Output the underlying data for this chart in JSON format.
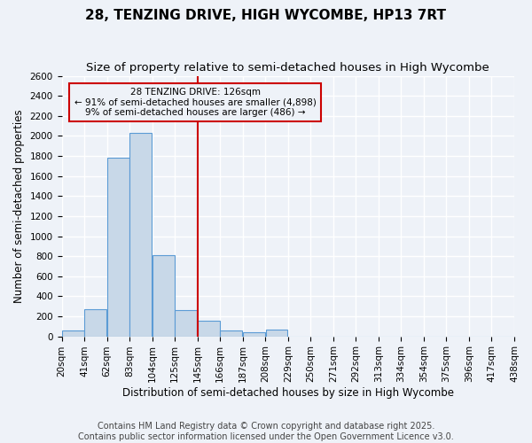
{
  "title": "28, TENZING DRIVE, HIGH WYCOMBE, HP13 7RT",
  "subtitle": "Size of property relative to semi-detached houses in High Wycombe",
  "xlabel": "Distribution of semi-detached houses by size in High Wycombe",
  "ylabel": "Number of semi-detached properties",
  "footer_line1": "Contains HM Land Registry data © Crown copyright and database right 2025.",
  "footer_line2": "Contains public sector information licensed under the Open Government Licence v3.0.",
  "annotation_title": "28 TENZING DRIVE: 126sqm",
  "annotation_line1": "← 91% of semi-detached houses are smaller (4,898)",
  "annotation_line2": "9% of semi-detached houses are larger (486) →",
  "bar_edges": [
    20,
    41,
    62,
    83,
    104,
    125,
    146,
    167,
    188,
    209,
    230,
    251,
    272,
    293,
    314,
    335,
    356,
    377,
    398,
    419,
    440
  ],
  "bar_labels": [
    "20sqm",
    "41sqm",
    "62sqm",
    "83sqm",
    "104sqm",
    "125sqm",
    "145sqm",
    "166sqm",
    "187sqm",
    "208sqm",
    "229sqm",
    "250sqm",
    "271sqm",
    "292sqm",
    "313sqm",
    "334sqm",
    "354sqm",
    "375sqm",
    "396sqm",
    "417sqm",
    "438sqm"
  ],
  "bar_heights": [
    60,
    270,
    1780,
    2030,
    810,
    260,
    155,
    60,
    40,
    70,
    0,
    0,
    0,
    0,
    0,
    0,
    0,
    0,
    0,
    0
  ],
  "bar_color": "#c8d8e8",
  "bar_edge_color": "#5b9bd5",
  "vline_color": "#cc0000",
  "annotation_box_color": "#cc0000",
  "annotation_text_color": "#000000",
  "ylim": [
    0,
    2600
  ],
  "yticks": [
    0,
    200,
    400,
    600,
    800,
    1000,
    1200,
    1400,
    1600,
    1800,
    2000,
    2200,
    2400,
    2600
  ],
  "background_color": "#eef2f8",
  "grid_color": "#ffffff",
  "title_fontsize": 11,
  "subtitle_fontsize": 9.5,
  "axis_label_fontsize": 8.5,
  "tick_fontsize": 7.5,
  "footer_fontsize": 7
}
